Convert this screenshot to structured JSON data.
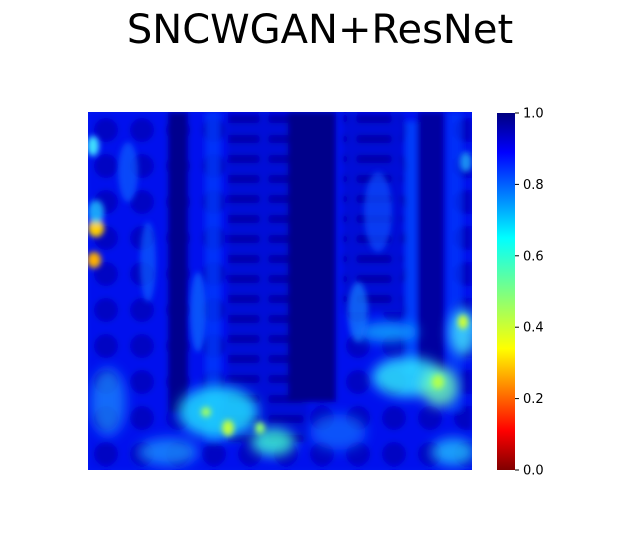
{
  "chart_data": {
    "type": "heatmap",
    "title": "SNCWGAN+ResNet",
    "colormap": "jet",
    "value_range": [
      0.0,
      1.0
    ],
    "axes_visible": false,
    "colorbar": {
      "position": "right",
      "ticks": [
        "0.0",
        "0.2",
        "0.4",
        "0.6",
        "0.8",
        "1.0"
      ],
      "tick_values": [
        0.0,
        0.2,
        0.4,
        0.6,
        0.8,
        1.0
      ]
    }
  }
}
